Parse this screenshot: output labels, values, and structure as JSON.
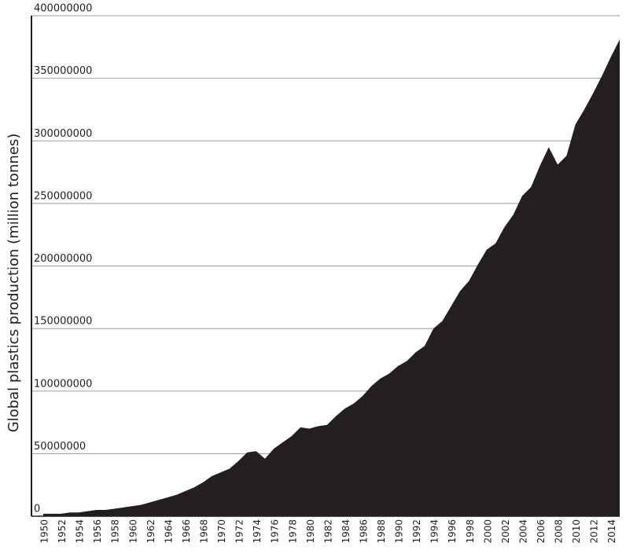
{
  "chart_data": {
    "type": "area",
    "y_label": "Global plastics production (million tonnes)",
    "color": "#231f20",
    "grid": true,
    "x": [
      1950,
      1951,
      1952,
      1953,
      1954,
      1955,
      1956,
      1957,
      1958,
      1959,
      1960,
      1961,
      1962,
      1963,
      1964,
      1965,
      1966,
      1967,
      1968,
      1969,
      1970,
      1971,
      1972,
      1973,
      1974,
      1975,
      1976,
      1977,
      1978,
      1979,
      1980,
      1981,
      1982,
      1983,
      1984,
      1985,
      1986,
      1987,
      1988,
      1989,
      1990,
      1991,
      1992,
      1993,
      1994,
      1995,
      1996,
      1997,
      1998,
      1999,
      2000,
      2001,
      2002,
      2003,
      2004,
      2005,
      2006,
      2007,
      2008,
      2009,
      2010,
      2011,
      2012,
      2013,
      2014,
      2015
    ],
    "values": [
      2000000,
      2000000,
      2000000,
      3000000,
      3000000,
      4000000,
      5000000,
      5000000,
      6000000,
      7000000,
      8000000,
      9000000,
      11000000,
      13000000,
      15000000,
      17000000,
      20000000,
      23000000,
      27000000,
      32000000,
      35000000,
      38000000,
      44000000,
      51000000,
      52000000,
      46000000,
      54000000,
      59000000,
      64000000,
      71000000,
      70000000,
      72000000,
      73000000,
      80000000,
      86000000,
      90000000,
      96000000,
      104000000,
      110000000,
      114000000,
      120000000,
      124000000,
      131000000,
      136000000,
      150000000,
      156000000,
      168000000,
      180000000,
      188000000,
      201000000,
      213000000,
      218000000,
      231000000,
      241000000,
      256000000,
      263000000,
      280000000,
      295000000,
      281000000,
      288000000,
      313000000,
      325000000,
      338000000,
      352000000,
      367000000,
      381000000
    ],
    "xlim": [
      1950,
      2015
    ],
    "ylim": [
      0,
      400000000
    ],
    "xticks": [
      1950,
      1952,
      1954,
      1956,
      1958,
      1960,
      1962,
      1964,
      1966,
      1968,
      1970,
      1972,
      1974,
      1976,
      1978,
      1980,
      1982,
      1984,
      1986,
      1988,
      1990,
      1992,
      1994,
      1996,
      1998,
      2000,
      2002,
      2004,
      2006,
      2008,
      2010,
      2012,
      2014
    ],
    "yticks": [
      0,
      50000000,
      100000000,
      150000000,
      200000000,
      250000000,
      300000000,
      350000000,
      400000000
    ]
  }
}
